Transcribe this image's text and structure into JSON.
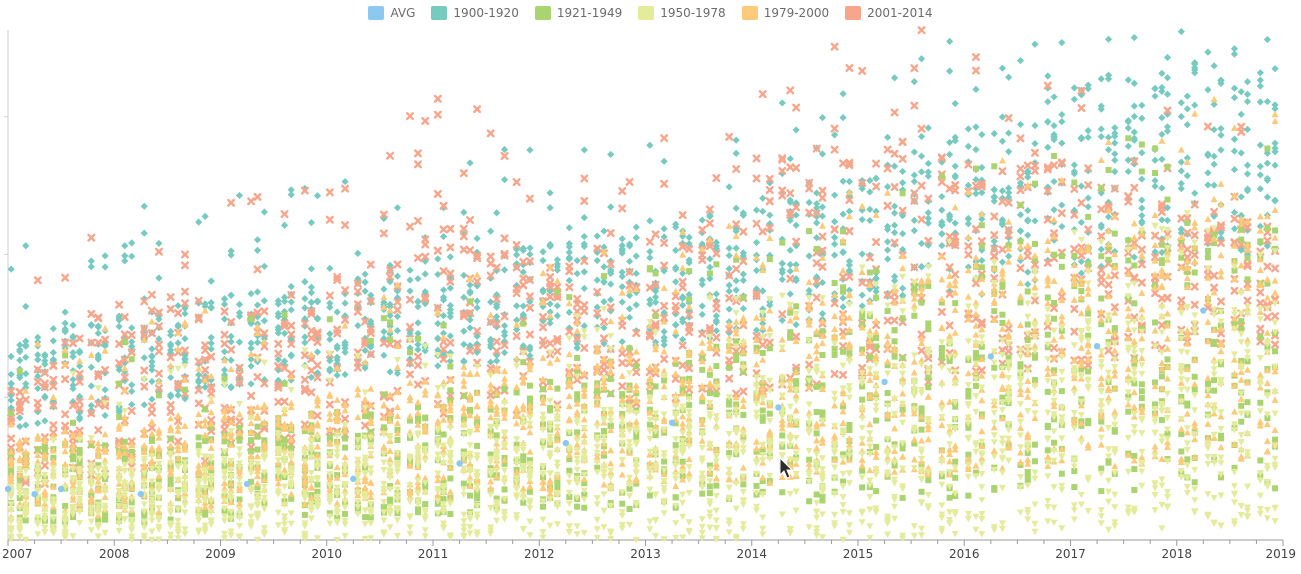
{
  "legend": [
    {
      "label": "AVG",
      "color": "#8cc8f0"
    },
    {
      "label": "1900-1920",
      "color": "#76cabf"
    },
    {
      "label": "1921-1949",
      "color": "#a9d46f"
    },
    {
      "label": "1950-1978",
      "color": "#e4ec9c"
    },
    {
      "label": "1979-2000",
      "color": "#fcca78"
    },
    {
      "label": "2001-2014",
      "color": "#f7a68c"
    }
  ],
  "chart_data": {
    "type": "scatter",
    "xlabel": "",
    "ylabel": "",
    "x_ticks": [
      "2007",
      "2008",
      "2009",
      "2010",
      "2011",
      "2012",
      "2013",
      "2014",
      "2015",
      "2016",
      "2017",
      "2018",
      "2019"
    ],
    "x_range": [
      2007,
      2019
    ],
    "y_range": [
      0,
      100
    ],
    "grid": false,
    "legend_position": "top-center",
    "series": [
      {
        "name": "AVG",
        "color": "#8cc8f0",
        "shape": "circle",
        "points": [
          [
            2007.0,
            10
          ],
          [
            2007.25,
            9
          ],
          [
            2007.5,
            10
          ],
          [
            2008.25,
            9
          ],
          [
            2009.25,
            11
          ],
          [
            2010.25,
            12
          ],
          [
            2011.25,
            15
          ],
          [
            2012.25,
            19
          ],
          [
            2013.25,
            23
          ],
          [
            2014.25,
            26
          ],
          [
            2015.25,
            31
          ],
          [
            2016.25,
            36
          ],
          [
            2017.25,
            38
          ],
          [
            2018.25,
            45
          ]
        ]
      },
      {
        "name": "1900-1920",
        "color": "#76cabf",
        "shape": "diamond",
        "band_low": [
          22,
          25,
          29,
          32,
          33,
          36,
          38,
          41,
          45,
          48,
          52,
          54,
          56
        ],
        "band_high": [
          40,
          45,
          48,
          52,
          56,
          58,
          62,
          66,
          72,
          82,
          90,
          94,
          97
        ]
      },
      {
        "name": "1921-1949",
        "color": "#a9d46f",
        "shape": "square",
        "band_low": [
          3,
          3,
          4,
          4,
          5,
          5,
          6,
          7,
          8,
          8,
          9,
          10,
          10
        ],
        "band_high": [
          18,
          20,
          23,
          26,
          28,
          32,
          36,
          40,
          48,
          54,
          58,
          60,
          62
        ]
      },
      {
        "name": "1950-1978",
        "color": "#e4ec9c",
        "shape": "triangle-down",
        "band_low": [
          0,
          0,
          0,
          0,
          0,
          0,
          0,
          0,
          0,
          1,
          2,
          2,
          2
        ],
        "band_high": [
          14,
          16,
          18,
          20,
          22,
          25,
          28,
          32,
          36,
          40,
          44,
          46,
          48
        ]
      },
      {
        "name": "1979-2000",
        "color": "#fcca78",
        "shape": "triangle-up",
        "band_low": [
          4,
          5,
          6,
          7,
          8,
          9,
          10,
          11,
          12,
          13,
          14,
          15,
          16
        ],
        "band_high": [
          20,
          23,
          26,
          29,
          32,
          36,
          40,
          44,
          50,
          56,
          62,
          66,
          70
        ]
      },
      {
        "name": "2001-2014",
        "color": "#f7a68c",
        "shape": "cross",
        "band_low": [
          10,
          13,
          16,
          19,
          22,
          25,
          26,
          28,
          30,
          32,
          34,
          36,
          38
        ],
        "band_high": [
          30,
          50,
          48,
          52,
          68,
          56,
          60,
          72,
          84,
          76,
          74,
          66,
          62
        ]
      }
    ]
  }
}
